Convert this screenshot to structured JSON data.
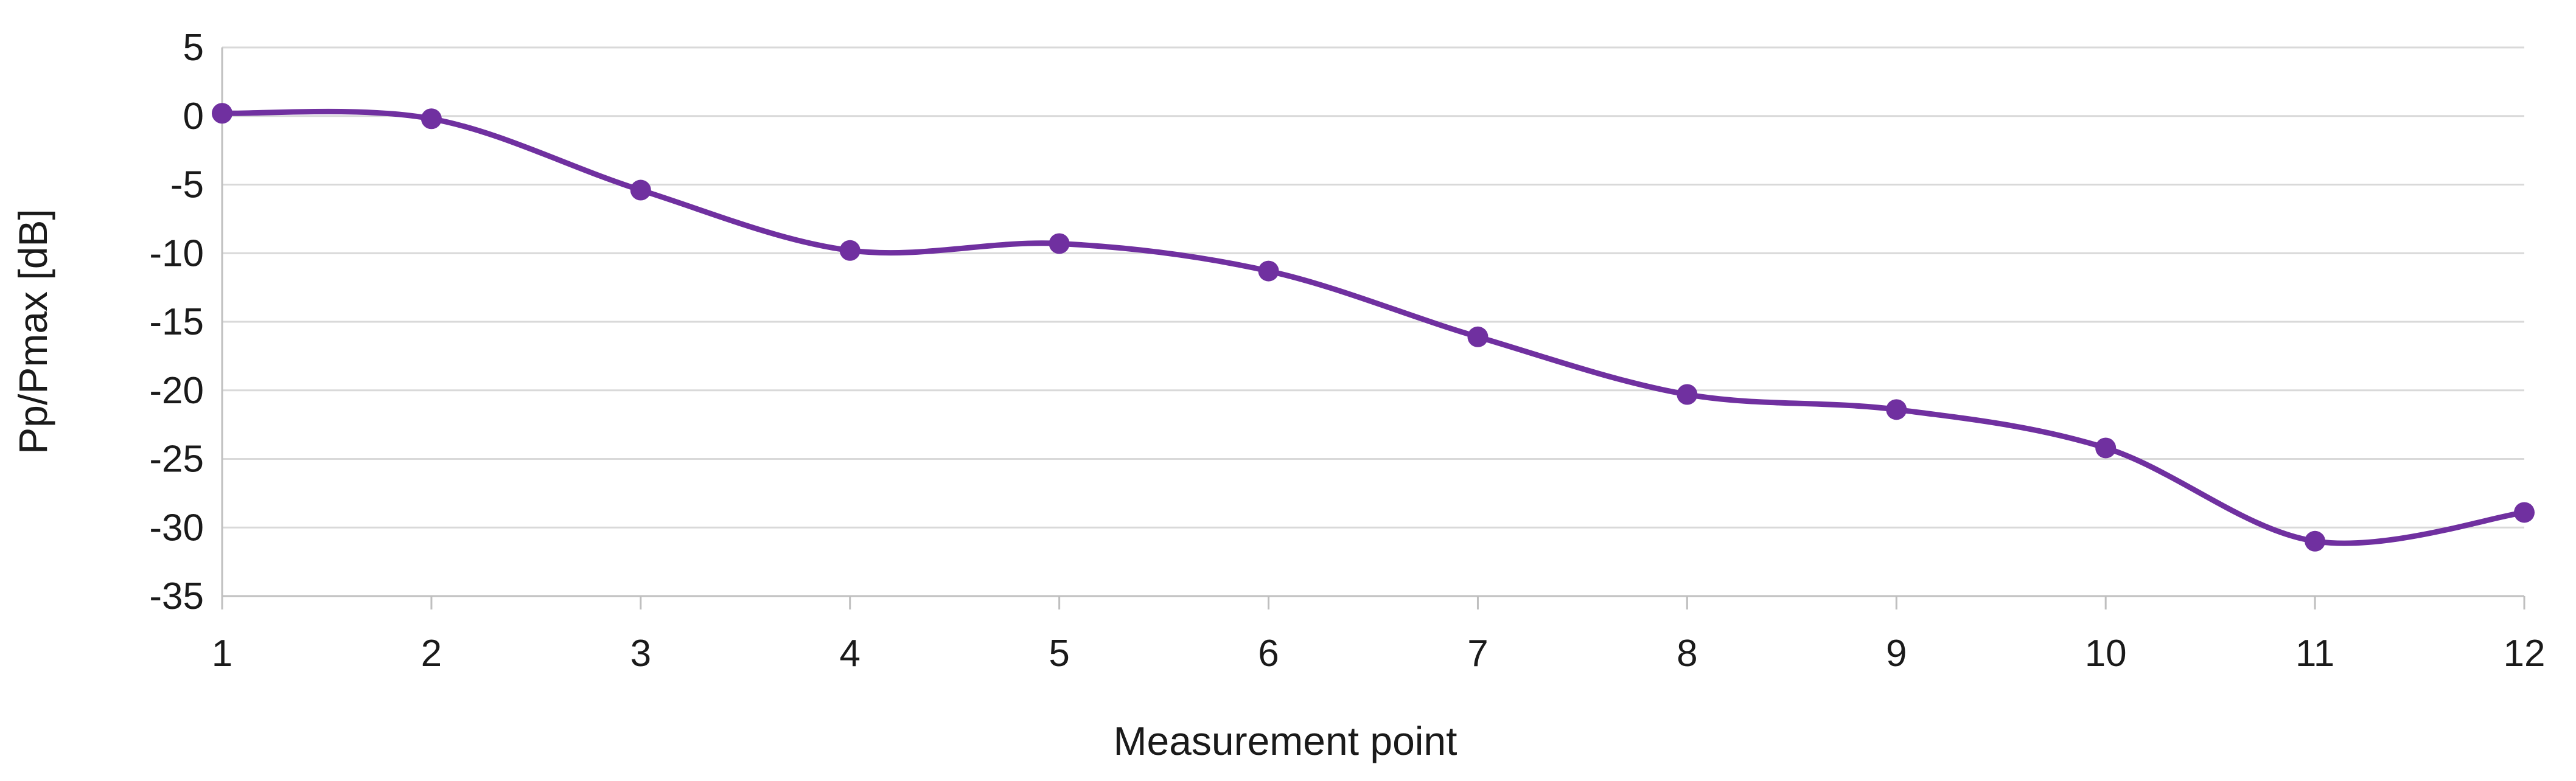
{
  "chart_data": {
    "type": "line",
    "title": "",
    "xlabel": "Measurement point",
    "ylabel": "Pp/Pmax [dB]",
    "x": [
      1,
      2,
      3,
      4,
      5,
      6,
      7,
      8,
      9,
      10,
      11,
      12
    ],
    "xlim": [
      1,
      12
    ],
    "ylim": [
      -35,
      5
    ],
    "yticks": [
      5,
      0,
      -5,
      -10,
      -15,
      -20,
      -25,
      -30,
      -35
    ],
    "grid": true,
    "smooth": true,
    "series": [
      {
        "color": "#7030a0",
        "values": [
          0.2,
          -0.2,
          -5.4,
          -9.8,
          -9.3,
          -11.3,
          -16.1,
          -20.3,
          -21.4,
          -24.2,
          -31.0,
          -28.9
        ]
      }
    ]
  }
}
